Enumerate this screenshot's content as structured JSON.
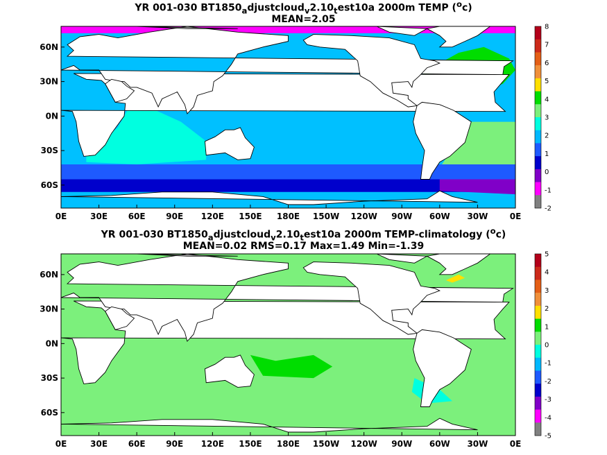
{
  "chart_data": [
    {
      "type": "heatmap",
      "title_parts": [
        "YR 001-030 BT1850",
        "a",
        "djustcloud",
        "v",
        "2.10",
        "t",
        "est10a 2000m TEMP (",
        "o",
        "c)"
      ],
      "subtitle": "MEAN=2.05",
      "x_ticks": [
        "0E",
        "30E",
        "60E",
        "90E",
        "120E",
        "150E",
        "180E",
        "150W",
        "120W",
        "90W",
        "60W",
        "30W",
        "0E"
      ],
      "y_ticks": [
        "60N",
        "30N",
        "0N",
        "30S",
        "60S"
      ],
      "colorbar": {
        "labels": [
          "8",
          "7",
          "6",
          "5",
          "4",
          "3",
          "2",
          "1",
          "0",
          "-1",
          "-2"
        ],
        "colors": [
          "#b3001a",
          "#cc2a1a",
          "#e45f16",
          "#f0903a",
          "#ffe000",
          "#00dd00",
          "#7cf07c",
          "#00ffe0",
          "#00b8ff",
          "#1e5aff",
          "#0000cc",
          "#8000c8",
          "#ff00ff",
          "#808080"
        ]
      },
      "ocean_base_color": "#00c0ff",
      "regions": [
        {
          "name": "north-atlantic",
          "color": "#00dd00"
        },
        {
          "name": "arctic",
          "color": "#ff00ff"
        },
        {
          "name": "southern-ocean-band",
          "color": "#1e5aff"
        },
        {
          "name": "southern-ocean-deep",
          "color": "#0000cc"
        },
        {
          "name": "weddell",
          "color": "#8000c8"
        },
        {
          "name": "indian",
          "color": "#00ffe0"
        },
        {
          "name": "south-atlantic",
          "color": "#7cf07c"
        }
      ]
    },
    {
      "type": "heatmap",
      "title_parts": [
        "YR 001-030 BT1850",
        "a",
        "djustcloud",
        "v",
        "2.10",
        "t",
        "est10a 2000m TEMP-climatology (",
        "o",
        "c)"
      ],
      "subtitle": "MEAN=0.02   RMS=0.17   Max=1.49   Min=-1.39",
      "x_ticks": [
        "0E",
        "30E",
        "60E",
        "90E",
        "120E",
        "150E",
        "180E",
        "150W",
        "120W",
        "90W",
        "60W",
        "30W",
        "0E"
      ],
      "y_ticks": [
        "60N",
        "30N",
        "0N",
        "30S",
        "60S"
      ],
      "colorbar": {
        "labels": [
          "5",
          "4",
          "3",
          "2",
          "1",
          "0",
          "-1",
          "-2",
          "-3",
          "-4",
          "-5"
        ],
        "colors": [
          "#b3001a",
          "#cc2a1a",
          "#e45f16",
          "#f0903a",
          "#ffe000",
          "#00dd00",
          "#7cf07c",
          "#00ffe0",
          "#00b8ff",
          "#1e5aff",
          "#0000cc",
          "#8000c8",
          "#ff00ff",
          "#808080"
        ]
      },
      "ocean_base_color": "#7cf07c",
      "regions": [
        {
          "name": "positive-patches",
          "color": "#00dd00"
        },
        {
          "name": "negative-patches",
          "color": "#00ffe0"
        },
        {
          "name": "labrador-anomaly",
          "color": "#ffe000"
        }
      ]
    }
  ]
}
